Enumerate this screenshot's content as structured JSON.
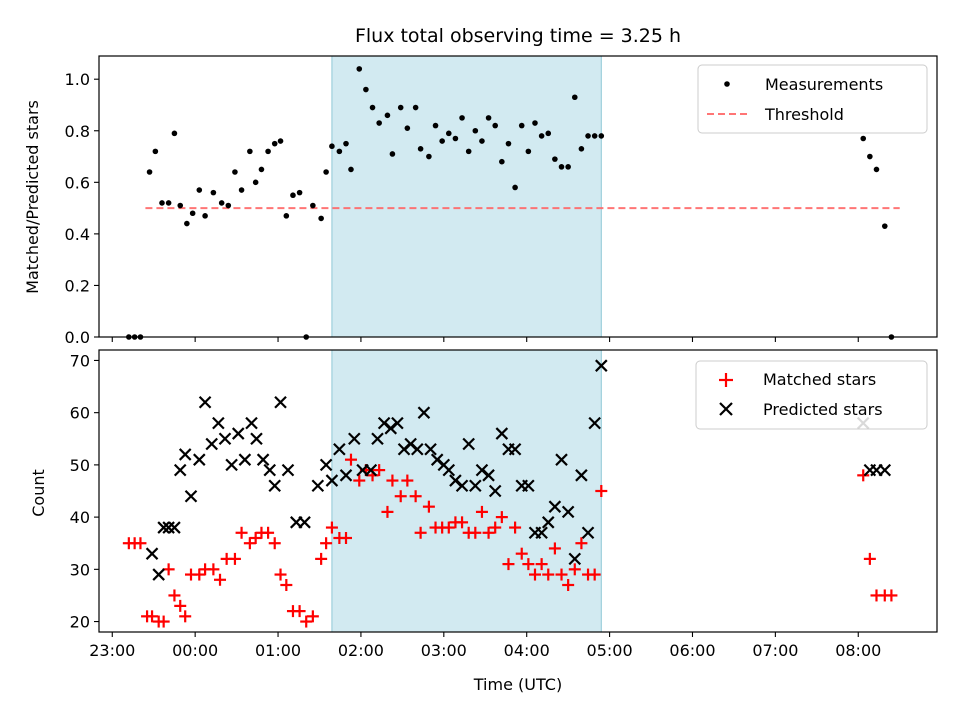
{
  "chart_data": [
    {
      "type": "scatter",
      "title": "Flux total observing time = 3.25 h",
      "ylabel": "Matched/Predicted stars",
      "xlim": [
        -1.16,
        8.95
      ],
      "ylim": [
        0,
        1.09
      ],
      "yticks": [
        "0.0",
        "0.2",
        "0.4",
        "0.6",
        "0.8",
        "1.0"
      ],
      "shaded_span_hours": [
        1.65,
        4.9
      ],
      "shaded_color": "#add8e6",
      "legend_position": "top-right",
      "legend": [
        "Measurements",
        "Threshold"
      ],
      "threshold": {
        "name": "Threshold",
        "value": 0.5,
        "x_range": [
          -0.6,
          8.5
        ],
        "color": "#ff6666",
        "style": "dashed"
      },
      "series": [
        {
          "name": "Measurements",
          "color": "#000000",
          "marker": "dot",
          "x": [
            -0.8,
            -0.73,
            -0.66,
            -0.55,
            -0.48,
            -0.4,
            -0.32,
            -0.25,
            -0.18,
            -0.1,
            -0.03,
            0.05,
            0.12,
            0.22,
            0.32,
            0.4,
            0.48,
            0.56,
            0.66,
            0.73,
            0.8,
            0.88,
            0.96,
            1.03,
            1.1,
            1.18,
            1.26,
            1.34,
            1.42,
            1.52,
            1.58,
            1.65,
            1.74,
            1.82,
            1.88,
            1.98,
            2.06,
            2.14,
            2.22,
            2.32,
            2.38,
            2.48,
            2.56,
            2.66,
            2.72,
            2.82,
            2.9,
            2.98,
            3.06,
            3.14,
            3.22,
            3.3,
            3.38,
            3.46,
            3.54,
            3.62,
            3.7,
            3.78,
            3.86,
            3.94,
            4.02,
            4.1,
            4.18,
            4.26,
            4.34,
            4.42,
            4.5,
            4.58,
            4.66,
            4.74,
            4.82,
            4.9,
            8.06,
            8.14,
            8.22,
            8.32,
            8.4
          ],
          "y": [
            0.0,
            0.0,
            0.0,
            0.64,
            0.72,
            0.52,
            0.52,
            0.79,
            0.51,
            0.44,
            0.48,
            0.57,
            0.47,
            0.56,
            0.52,
            0.51,
            0.64,
            0.57,
            0.72,
            0.6,
            0.65,
            0.72,
            0.75,
            0.76,
            0.47,
            0.55,
            0.56,
            0.0,
            0.51,
            0.46,
            0.64,
            0.74,
            0.72,
            0.75,
            0.65,
            1.04,
            0.96,
            0.89,
            0.83,
            0.86,
            0.71,
            0.89,
            0.81,
            0.89,
            0.73,
            0.7,
            0.82,
            0.76,
            0.79,
            0.77,
            0.85,
            0.72,
            0.8,
            0.76,
            0.85,
            0.82,
            0.68,
            0.75,
            0.58,
            0.82,
            0.72,
            0.83,
            0.78,
            0.79,
            0.69,
            0.66,
            0.66,
            0.93,
            0.73,
            0.78,
            0.78,
            0.78,
            0.77,
            0.7,
            0.65,
            0.43,
            0.0
          ]
        }
      ]
    },
    {
      "type": "scatter",
      "xlabel": "Time (UTC)",
      "ylabel": "Count",
      "xlim": [
        -1.16,
        8.95
      ],
      "ylim": [
        18,
        72
      ],
      "yticks": [
        "20",
        "30",
        "40",
        "50",
        "60",
        "70"
      ],
      "xticks": [
        "23:00",
        "00:00",
        "01:00",
        "02:00",
        "03:00",
        "04:00",
        "05:00",
        "06:00",
        "07:00",
        "08:00"
      ],
      "shaded_span_hours": [
        1.65,
        4.9
      ],
      "shaded_color": "#add8e6",
      "legend_position": "top-right",
      "legend": [
        "Matched stars",
        "Predicted stars"
      ],
      "series": [
        {
          "name": "Matched stars",
          "color": "#ff0000",
          "marker": "plus",
          "x": [
            -0.8,
            -0.73,
            -0.66,
            -0.58,
            -0.52,
            -0.44,
            -0.38,
            -0.32,
            -0.25,
            -0.18,
            -0.12,
            -0.05,
            0.05,
            0.12,
            0.22,
            0.3,
            0.38,
            0.48,
            0.56,
            0.66,
            0.73,
            0.8,
            0.88,
            0.96,
            1.03,
            1.1,
            1.18,
            1.26,
            1.34,
            1.42,
            1.52,
            1.58,
            1.65,
            1.74,
            1.82,
            1.88,
            1.98,
            2.06,
            2.14,
            2.22,
            2.32,
            2.38,
            2.48,
            2.56,
            2.66,
            2.72,
            2.82,
            2.9,
            2.98,
            3.06,
            3.14,
            3.22,
            3.3,
            3.38,
            3.46,
            3.54,
            3.62,
            3.7,
            3.78,
            3.86,
            3.94,
            4.02,
            4.1,
            4.18,
            4.26,
            4.34,
            4.42,
            4.5,
            4.58,
            4.66,
            4.74,
            4.82,
            4.9,
            8.06,
            8.14,
            8.22,
            8.32,
            8.4
          ],
          "y": [
            35,
            35,
            35,
            21,
            21,
            20,
            20,
            30,
            25,
            23,
            21,
            29,
            29,
            30,
            30,
            28,
            32,
            32,
            37,
            35,
            36,
            37,
            37,
            35,
            29,
            27,
            22,
            22,
            20,
            21,
            32,
            35,
            38,
            36,
            36,
            51,
            47,
            49,
            48,
            49,
            41,
            47,
            44,
            47,
            44,
            37,
            42,
            38,
            38,
            38,
            39,
            39,
            37,
            37,
            41,
            37,
            38,
            40,
            31,
            38,
            33,
            31,
            29,
            31,
            29,
            34,
            29,
            27,
            30,
            35,
            29,
            29,
            45,
            48,
            32,
            25,
            25,
            25
          ]
        },
        {
          "name": "Predicted stars",
          "color": "#000000",
          "marker": "x",
          "x": [
            -0.52,
            -0.44,
            -0.38,
            -0.32,
            -0.25,
            -0.18,
            -0.12,
            -0.05,
            0.05,
            0.12,
            0.2,
            0.28,
            0.36,
            0.44,
            0.52,
            0.6,
            0.68,
            0.74,
            0.82,
            0.9,
            0.96,
            1.03,
            1.12,
            1.22,
            1.32,
            1.48,
            1.58,
            1.65,
            1.74,
            1.82,
            1.92,
            2.02,
            2.12,
            2.2,
            2.28,
            2.36,
            2.44,
            2.52,
            2.6,
            2.68,
            2.76,
            2.84,
            2.92,
            3.0,
            3.06,
            3.14,
            3.22,
            3.3,
            3.38,
            3.46,
            3.54,
            3.62,
            3.7,
            3.78,
            3.86,
            3.94,
            4.02,
            4.1,
            4.18,
            4.26,
            4.34,
            4.42,
            4.5,
            4.58,
            4.66,
            4.74,
            4.82,
            4.9,
            8.06,
            8.14,
            8.22,
            8.32
          ],
          "y": [
            33,
            29,
            38,
            38,
            38,
            49,
            52,
            44,
            51,
            62,
            54,
            58,
            55,
            50,
            56,
            51,
            58,
            55,
            51,
            49,
            46,
            62,
            49,
            39,
            39,
            46,
            50,
            47,
            53,
            48,
            55,
            49,
            49,
            55,
            58,
            57,
            58,
            53,
            54,
            53,
            60,
            53,
            51,
            50,
            49,
            47,
            46,
            54,
            46,
            49,
            48,
            45,
            56,
            53,
            53,
            46,
            46,
            37,
            37,
            39,
            42,
            51,
            41,
            32,
            48,
            37,
            58,
            69,
            58,
            49,
            49,
            49
          ]
        }
      ]
    }
  ]
}
